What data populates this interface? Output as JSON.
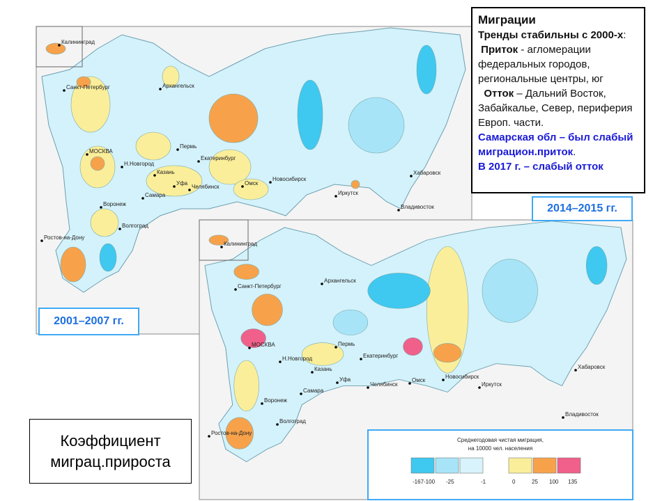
{
  "info_box": {
    "title": "Миграции",
    "trend": "Тренды стабильны с 2000-х",
    "trend_end": ":",
    "inflow_label": "Приток",
    "inflow_text": " - агломерации федеральных городов, региональные центры, юг",
    "outflow_label": "Отток",
    "outflow_text": " – Дальний Восток, Забайкалье, Север, периферия Европ. части.",
    "samara": "Самарская обл – был слабый миграцион.приток",
    "samara_end": ".",
    "samara_2017": "В 2017 г. – слабый отток"
  },
  "map_2001": {
    "period": "2001–2007 гг.",
    "cities": [
      "Калининград",
      "Санкт-Петербург",
      "Архангельск",
      "Пермь",
      "Екатеринбург",
      "МОСКВА",
      "Н.Новгород",
      "Казань",
      "Уфа",
      "Челябинск",
      "Омск",
      "Новосибирск",
      "Иркутск",
      "Хабаровск",
      "Самара",
      "Воронеж",
      "Волгоград",
      "Ростов-на-Дону",
      "Владивосток"
    ]
  },
  "map_2014": {
    "period": "2014–2015 гг.",
    "cities": [
      "Калининград",
      "Санкт-Петербург",
      "Архангельск",
      "Пермь",
      "Екатеринбург",
      "МОСКВА",
      "Н.Новгород",
      "Казань",
      "Уфа",
      "Челябинск",
      "Омск",
      "Новосибирск",
      "Иркутск",
      "Хабаровск",
      "Самара",
      "Воронеж",
      "Волгоград",
      "Ростов-на-Дону",
      "Владивосток"
    ]
  },
  "legend": {
    "title_1": "Среднегодовая чистая миграция,",
    "title_2": "на 10000 чел. населения",
    "labels": [
      "-167",
      "-100",
      "-25",
      "-1",
      "0",
      "25",
      "100",
      "135"
    ]
  },
  "caption": {
    "line_1": "Коэффициент",
    "line_2": "миграц.прироста"
  }
}
